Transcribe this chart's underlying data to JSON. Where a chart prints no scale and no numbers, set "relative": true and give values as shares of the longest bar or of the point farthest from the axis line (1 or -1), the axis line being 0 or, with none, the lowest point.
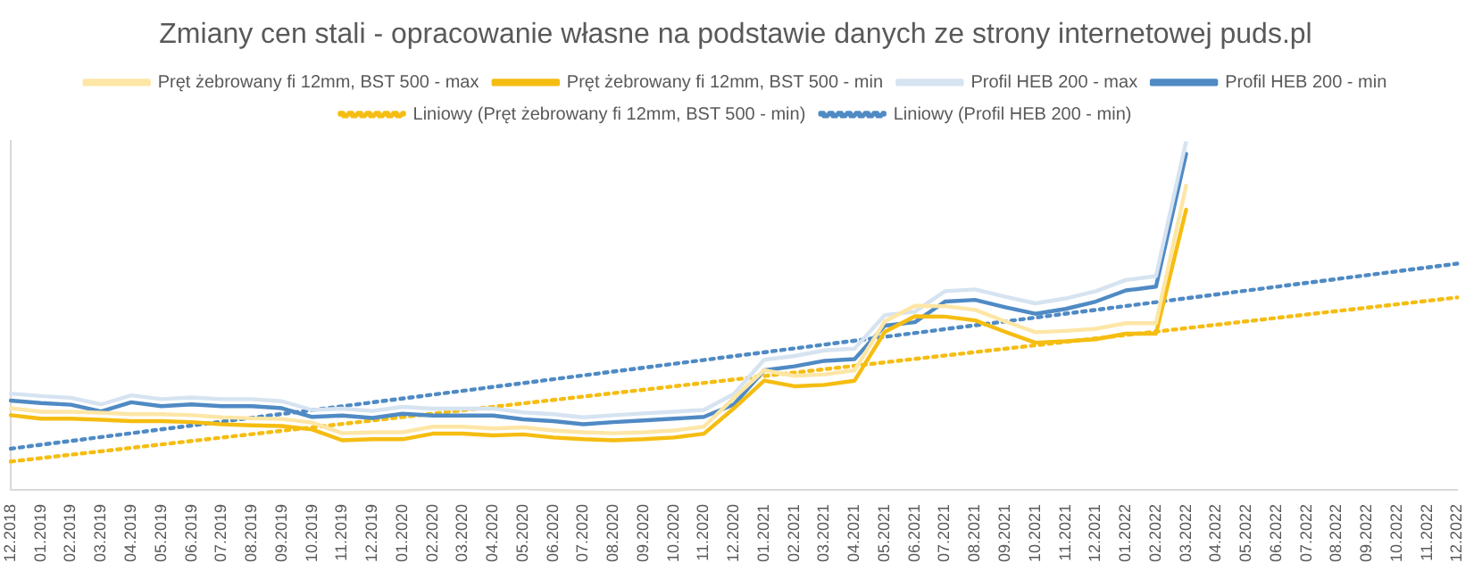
{
  "chart_data": {
    "type": "line",
    "title": "Zmiany cen stali - opracowanie własne na podstawie danych ze strony internetowej puds.pl",
    "relative": true,
    "legend": "top",
    "marker": "none",
    "grid": false,
    "categories": [
      "12.2018",
      "01.2019",
      "02.2019",
      "03.2019",
      "04.2019",
      "05.2019",
      "06.2019",
      "07.2019",
      "08.2019",
      "09.2019",
      "10.2019",
      "11.2019",
      "12.2019",
      "01.2020",
      "02.2020",
      "03.2020",
      "04.2020",
      "05.2020",
      "06.2020",
      "07.2020",
      "08.2020",
      "09.2020",
      "10.2020",
      "11.2020",
      "12.2020",
      "01.2021",
      "02.2021",
      "03.2021",
      "04.2021",
      "05.2021",
      "06.2021",
      "07.2021",
      "08.2021",
      "09.2021",
      "10.2021",
      "11.2021",
      "12.2021",
      "01.2022",
      "02.2022",
      "03.2022",
      "04.2022",
      "05.2022",
      "06.2022",
      "07.2022",
      "08.2022",
      "09.2022",
      "10.2022",
      "11.2022",
      "12.2022"
    ],
    "series": [
      {
        "name": "Pręt żebrowany fi 12mm, BST 500 - max",
        "color": "#fde6a6",
        "line_style": "solid",
        "values": [
          0.234,
          0.224,
          0.224,
          0.221,
          0.217,
          0.217,
          0.214,
          0.208,
          0.205,
          0.203,
          0.193,
          0.162,
          0.165,
          0.165,
          0.181,
          0.181,
          0.176,
          0.179,
          0.17,
          0.165,
          0.162,
          0.165,
          0.17,
          0.181,
          0.264,
          0.343,
          0.327,
          0.331,
          0.343,
          0.483,
          0.528,
          0.527,
          0.516,
          0.483,
          0.452,
          0.456,
          0.462,
          0.478,
          0.478,
          0.873,
          null,
          null,
          null,
          null,
          null,
          null,
          null,
          null,
          null
        ]
      },
      {
        "name": "Pręt żebrowany fi 12mm, BST 500 - min",
        "color": "#f5bd12",
        "line_style": "solid",
        "values": [
          0.214,
          0.204,
          0.204,
          0.201,
          0.197,
          0.197,
          0.194,
          0.188,
          0.185,
          0.183,
          0.173,
          0.142,
          0.145,
          0.145,
          0.161,
          0.161,
          0.156,
          0.159,
          0.15,
          0.145,
          0.142,
          0.145,
          0.15,
          0.161,
          0.234,
          0.313,
          0.297,
          0.301,
          0.313,
          0.453,
          0.498,
          0.497,
          0.486,
          0.453,
          0.422,
          0.426,
          0.432,
          0.448,
          0.448,
          0.804,
          null,
          null,
          null,
          null,
          null,
          null,
          null,
          null,
          null
        ]
      },
      {
        "name": "Profil HEB 200 - max",
        "color": "#d6e3f1",
        "line_style": "solid",
        "values": [
          0.276,
          0.269,
          0.264,
          0.245,
          0.271,
          0.26,
          0.265,
          0.26,
          0.26,
          0.254,
          0.229,
          0.233,
          0.226,
          0.238,
          0.233,
          0.233,
          0.233,
          0.222,
          0.217,
          0.208,
          0.214,
          0.219,
          0.224,
          0.229,
          0.275,
          0.373,
          0.384,
          0.4,
          0.405,
          0.501,
          0.511,
          0.57,
          0.575,
          0.554,
          0.535,
          0.549,
          0.57,
          0.602,
          0.613,
          1,
          null,
          null,
          null,
          null,
          null,
          null,
          null,
          null,
          null
        ]
      },
      {
        "name": "Profil HEB 200 - min",
        "color": "#4f8ac4",
        "line_style": "solid",
        "values": [
          0.256,
          0.249,
          0.244,
          0.225,
          0.251,
          0.24,
          0.245,
          0.24,
          0.24,
          0.234,
          0.209,
          0.213,
          0.206,
          0.218,
          0.213,
          0.213,
          0.213,
          0.202,
          0.197,
          0.188,
          0.194,
          0.199,
          0.204,
          0.209,
          0.245,
          0.343,
          0.354,
          0.37,
          0.375,
          0.471,
          0.481,
          0.54,
          0.545,
          0.524,
          0.505,
          0.519,
          0.54,
          0.572,
          0.583,
          0.964,
          null,
          null,
          null,
          null,
          null,
          null,
          null,
          null,
          null
        ]
      },
      {
        "name": "Liniowy (Pręt żebrowany fi 12mm, BST 500 - min)",
        "color": "#f5bd12",
        "line_style": "dotted",
        "type": "line",
        "x": [
          "12.2018",
          "12.2022"
        ],
        "values": [
          0.081,
          0.552
        ]
      },
      {
        "name": "Liniowy (Profil HEB 200 - min)",
        "color": "#4f8ac4",
        "line_style": "dotted",
        "type": "line",
        "x": [
          "12.2018",
          "12.2022"
        ],
        "values": [
          0.118,
          0.649
        ]
      }
    ]
  }
}
